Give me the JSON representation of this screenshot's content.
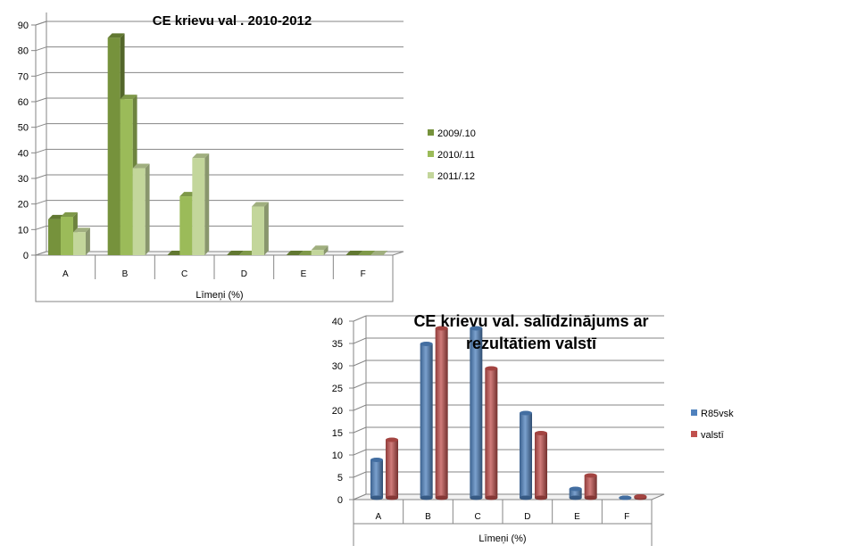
{
  "chart_data": [
    {
      "type": "bar",
      "title": "CE krievu val . 2010-2012",
      "xlabel": "Līmeņi (%)",
      "ylabel": "",
      "ylim": [
        0,
        90
      ],
      "yticks": [
        0,
        10,
        20,
        30,
        40,
        50,
        60,
        70,
        80,
        90
      ],
      "categories": [
        "A",
        "B",
        "C",
        "D",
        "E",
        "F"
      ],
      "series": [
        {
          "name": "2009/.10",
          "values": [
            14,
            85,
            0,
            0,
            0,
            0
          ],
          "color": "#76923c"
        },
        {
          "name": "2010/.11",
          "values": [
            15,
            61,
            23,
            0,
            0,
            0
          ],
          "color": "#9bbb59"
        },
        {
          "name": "2011/.12",
          "values": [
            9,
            34,
            38,
            19,
            2,
            0
          ],
          "color": "#c3d69b"
        }
      ],
      "grid": true,
      "legend": "right"
    },
    {
      "type": "bar",
      "title_lines": [
        "CE krievu val. salīdzinājums ar",
        "rezultātiem valstī"
      ],
      "xlabel": "Līmeņi (%)",
      "ylabel": "",
      "ylim": [
        0,
        40
      ],
      "yticks": [
        0,
        5,
        10,
        15,
        20,
        25,
        30,
        35,
        40
      ],
      "categories": [
        "A",
        "B",
        "C",
        "D",
        "E",
        "F"
      ],
      "series": [
        {
          "name": "R85vsk",
          "values": [
            8.5,
            34.5,
            38,
            19,
            2,
            0
          ],
          "color": "#4f81bd"
        },
        {
          "name": "valstī",
          "values": [
            13,
            38,
            29,
            14.5,
            5,
            0.3
          ],
          "color": "#c0504d"
        }
      ],
      "grid": true,
      "legend": "right"
    }
  ]
}
